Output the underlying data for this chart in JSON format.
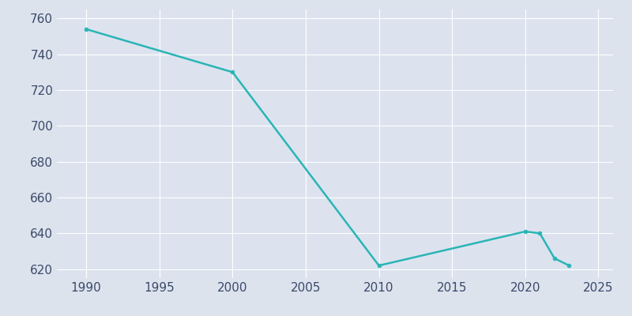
{
  "years": [
    1990,
    2000,
    2010,
    2020,
    2021,
    2022,
    2023
  ],
  "population": [
    754,
    730,
    622,
    641,
    640,
    626,
    622
  ],
  "line_color": "#2ab5b5",
  "marker_color": "#2ab5b5",
  "figure_bg_color": "#dde3ed",
  "plot_bg_color": "#dce3ef",
  "xlabel": "",
  "ylabel": "",
  "xlim": [
    1988,
    2026
  ],
  "ylim": [
    615,
    765
  ],
  "yticks": [
    620,
    640,
    660,
    680,
    700,
    720,
    740,
    760
  ],
  "xticks": [
    1990,
    1995,
    2000,
    2005,
    2010,
    2015,
    2020,
    2025
  ],
  "grid_color": "#ffffff",
  "tick_label_color": "#3a4a6b",
  "tick_fontsize": 11,
  "line_width": 1.8,
  "marker_size": 3.5
}
